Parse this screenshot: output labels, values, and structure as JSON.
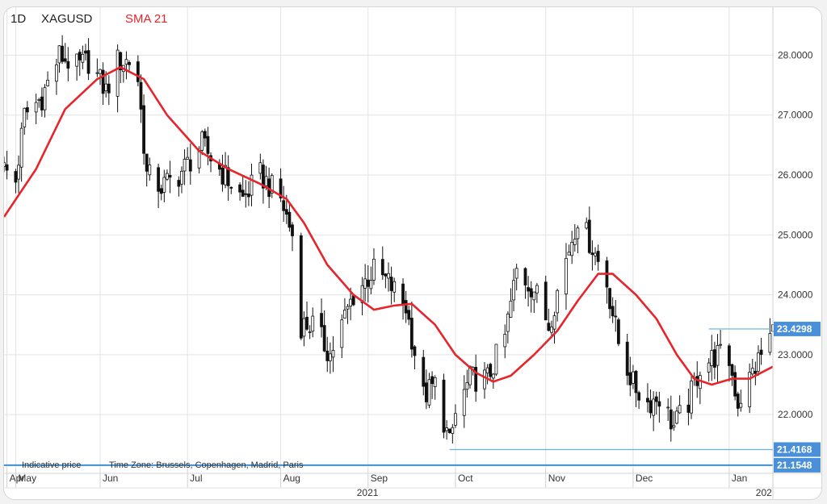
{
  "header": {
    "timeframe": "1D",
    "symbol": "XAGUSD",
    "indicator_label": "SMA 21",
    "indicator_color": "#e8242b"
  },
  "footer": {
    "price_note": "Indicative price",
    "timezone": "Time Zone: Brussels, Copenhagen, Madrid, Paris"
  },
  "colors": {
    "candle": "#111111",
    "sma": "#e8242b",
    "level_line": "#6aaed6",
    "badge": "#4a90d9",
    "current_line": "#3b8fd6",
    "grid": "#e3e3e3"
  },
  "chart_data": {
    "type": "candlestick",
    "symbol": "XAGUSD",
    "timeframe": "1D",
    "x_range": [
      "2021-04-29",
      "2022-01-18"
    ],
    "y_range": [
      21.1,
      28.8
    ],
    "y_ticks": [
      22.0,
      23.0,
      24.0,
      25.0,
      26.0,
      27.0,
      28.0
    ],
    "y_tick_labels": [
      "22.0000",
      "23.0000",
      "24.0000",
      "25.0000",
      "26.0000",
      "27.0000",
      "28.0000"
    ],
    "month_ticks": [
      {
        "label": "Apr",
        "date": "2021-04-30"
      },
      {
        "label": "May",
        "date": "2021-05-03"
      },
      {
        "label": "Jun",
        "date": "2021-06-01"
      },
      {
        "label": "Jul",
        "date": "2021-07-01"
      },
      {
        "label": "Aug",
        "date": "2021-08-02"
      },
      {
        "label": "Sep",
        "date": "2021-09-01"
      },
      {
        "label": "Oct",
        "date": "2021-10-01"
      },
      {
        "label": "Nov",
        "date": "2021-11-01"
      },
      {
        "label": "Dec",
        "date": "2021-12-01"
      },
      {
        "label": "Jan",
        "date": "2022-01-03"
      }
    ],
    "year_labels": [
      {
        "label": "2021",
        "date": "2021-09-01"
      },
      {
        "label": "202",
        "date": "2022-01-16"
      }
    ],
    "close_path": [
      [
        "2021-04-29",
        26.1
      ],
      [
        "2021-05-03",
        25.9
      ],
      [
        "2021-05-06",
        27.0
      ],
      [
        "2021-05-12",
        27.3
      ],
      [
        "2021-05-18",
        28.0
      ],
      [
        "2021-05-24",
        27.8
      ],
      [
        "2021-05-28",
        27.9
      ],
      [
        "2021-06-03",
        27.4
      ],
      [
        "2021-06-07",
        27.9
      ],
      [
        "2021-06-11",
        27.9
      ],
      [
        "2021-06-14",
        27.6
      ],
      [
        "2021-06-17",
        26.0
      ],
      [
        "2021-06-22",
        25.8
      ],
      [
        "2021-06-28",
        26.0
      ],
      [
        "2021-07-06",
        26.5
      ],
      [
        "2021-07-12",
        26.1
      ],
      [
        "2021-07-20",
        25.6
      ],
      [
        "2021-07-26",
        26.0
      ],
      [
        "2021-08-02",
        25.6
      ],
      [
        "2021-08-06",
        25.0
      ],
      [
        "2021-08-09",
        23.5
      ],
      [
        "2021-08-13",
        23.5
      ],
      [
        "2021-08-19",
        23.0
      ],
      [
        "2021-08-27",
        24.0
      ],
      [
        "2021-09-03",
        24.4
      ],
      [
        "2021-09-08",
        24.2
      ],
      [
        "2021-09-14",
        23.8
      ],
      [
        "2021-09-20",
        22.3
      ],
      [
        "2021-09-24",
        22.5
      ],
      [
        "2021-09-29",
        21.5
      ],
      [
        "2021-10-01",
        22.0
      ],
      [
        "2021-10-06",
        22.6
      ],
      [
        "2021-10-12",
        22.6
      ],
      [
        "2021-10-18",
        23.3
      ],
      [
        "2021-10-22",
        24.4
      ],
      [
        "2021-10-28",
        24.1
      ],
      [
        "2021-11-02",
        23.5
      ],
      [
        "2021-11-08",
        24.6
      ],
      [
        "2021-11-12",
        25.3
      ],
      [
        "2021-11-17",
        24.8
      ],
      [
        "2021-11-22",
        24.2
      ],
      [
        "2021-11-26",
        23.2
      ],
      [
        "2021-12-01",
        22.5
      ],
      [
        "2021-12-06",
        22.2
      ],
      [
        "2021-12-10",
        22.3
      ],
      [
        "2021-12-15",
        21.8
      ],
      [
        "2021-12-20",
        22.2
      ],
      [
        "2021-12-24",
        22.8
      ],
      [
        "2021-12-30",
        23.0
      ],
      [
        "2022-01-03",
        22.9
      ],
      [
        "2022-01-06",
        22.2
      ],
      [
        "2022-01-11",
        22.7
      ],
      [
        "2022-01-14",
        23.0
      ],
      [
        "2022-01-18",
        23.4
      ]
    ],
    "sma_21": [
      [
        "2021-04-29",
        25.3
      ],
      [
        "2021-05-10",
        26.1
      ],
      [
        "2021-05-20",
        27.1
      ],
      [
        "2021-05-31",
        27.6
      ],
      [
        "2021-06-08",
        27.8
      ],
      [
        "2021-06-16",
        27.6
      ],
      [
        "2021-06-24",
        27.0
      ],
      [
        "2021-07-05",
        26.4
      ],
      [
        "2021-07-15",
        26.1
      ],
      [
        "2021-07-26",
        25.85
      ],
      [
        "2021-08-04",
        25.6
      ],
      [
        "2021-08-10",
        25.2
      ],
      [
        "2021-08-18",
        24.5
      ],
      [
        "2021-08-27",
        24.0
      ],
      [
        "2021-09-03",
        23.75
      ],
      [
        "2021-09-10",
        23.82
      ],
      [
        "2021-09-16",
        23.85
      ],
      [
        "2021-09-24",
        23.5
      ],
      [
        "2021-10-01",
        23.0
      ],
      [
        "2021-10-08",
        22.7
      ],
      [
        "2021-10-14",
        22.55
      ],
      [
        "2021-10-20",
        22.65
      ],
      [
        "2021-10-28",
        23.0
      ],
      [
        "2021-11-05",
        23.4
      ],
      [
        "2021-11-12",
        23.9
      ],
      [
        "2021-11-19",
        24.35
      ],
      [
        "2021-11-24",
        24.35
      ],
      [
        "2021-12-02",
        24.0
      ],
      [
        "2021-12-09",
        23.6
      ],
      [
        "2021-12-16",
        23.0
      ],
      [
        "2021-12-22",
        22.6
      ],
      [
        "2021-12-28",
        22.5
      ],
      [
        "2022-01-04",
        22.6
      ],
      [
        "2022-01-10",
        22.6
      ],
      [
        "2022-01-18",
        22.8
      ]
    ],
    "levels": [
      {
        "label": "23.4298",
        "value": 23.4298,
        "from": "2021-12-27"
      },
      {
        "label": "21.4168",
        "value": 21.4168,
        "from": "2021-09-29"
      }
    ],
    "current_price": {
      "label": "21.1548",
      "value": 21.1548
    },
    "grid": true
  }
}
